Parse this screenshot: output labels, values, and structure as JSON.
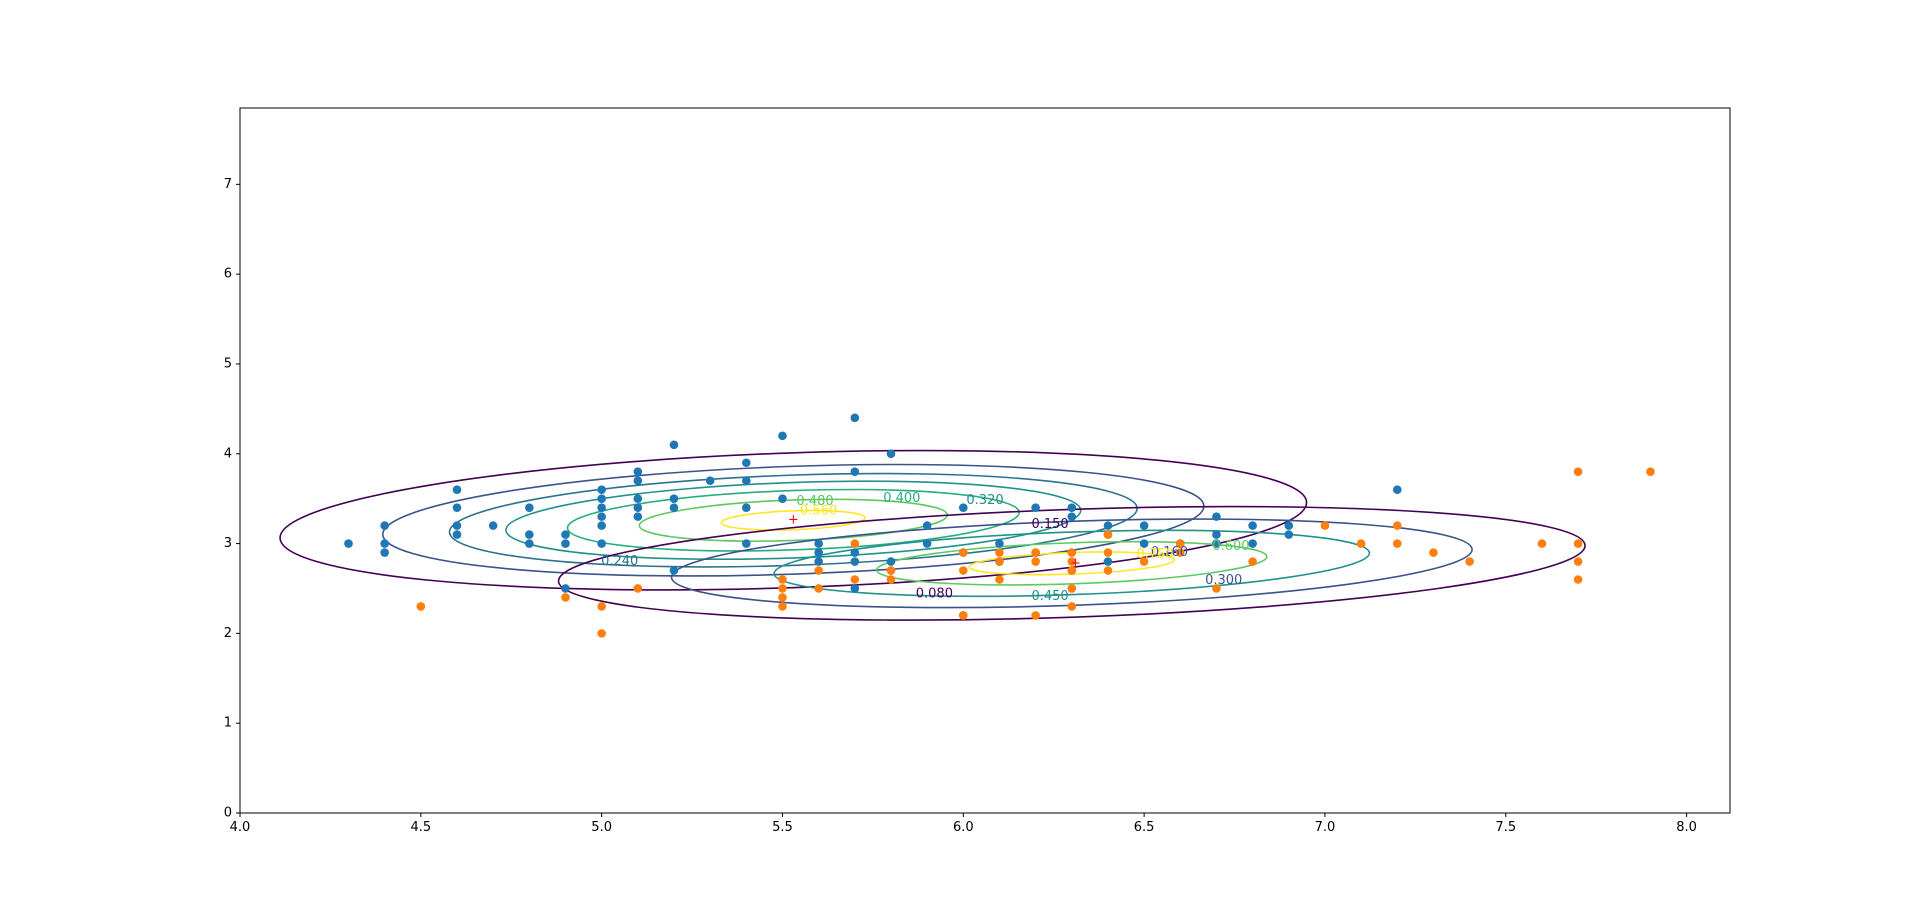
{
  "chart_data": {
    "type": "scatter",
    "title": "",
    "xlabel": "",
    "ylabel": "",
    "xlim": [
      4.0,
      8.12
    ],
    "ylim": [
      0,
      7.85
    ],
    "grid": false,
    "legend": "none",
    "x_ticks": [
      "4.0",
      "4.5",
      "5.0",
      "5.5",
      "6.0",
      "6.5",
      "7.0",
      "7.5",
      "8.0"
    ],
    "y_ticks": [
      "0",
      "1",
      "2",
      "3",
      "4",
      "5",
      "6",
      "7"
    ],
    "series": [
      {
        "color": "#1f77b4",
        "points": [
          [
            4.3,
            3.0
          ],
          [
            4.4,
            3.2
          ],
          [
            4.4,
            3.0
          ],
          [
            4.4,
            2.9
          ],
          [
            4.6,
            3.6
          ],
          [
            4.6,
            3.4
          ],
          [
            4.6,
            3.2
          ],
          [
            4.6,
            3.1
          ],
          [
            4.7,
            3.2
          ],
          [
            4.8,
            3.4
          ],
          [
            4.8,
            3.1
          ],
          [
            4.8,
            3.0
          ],
          [
            4.9,
            3.1
          ],
          [
            4.9,
            3.0
          ],
          [
            4.9,
            2.5
          ],
          [
            5.0,
            3.6
          ],
          [
            5.0,
            3.5
          ],
          [
            5.0,
            3.4
          ],
          [
            5.0,
            3.3
          ],
          [
            5.0,
            3.2
          ],
          [
            5.0,
            3.0
          ],
          [
            5.1,
            3.8
          ],
          [
            5.1,
            3.7
          ],
          [
            5.1,
            3.5
          ],
          [
            5.1,
            3.4
          ],
          [
            5.1,
            3.3
          ],
          [
            5.2,
            4.1
          ],
          [
            5.2,
            3.5
          ],
          [
            5.2,
            3.4
          ],
          [
            5.2,
            2.7
          ],
          [
            5.3,
            3.7
          ],
          [
            5.4,
            3.9
          ],
          [
            5.4,
            3.7
          ],
          [
            5.4,
            3.4
          ],
          [
            5.4,
            3.0
          ],
          [
            5.5,
            4.2
          ],
          [
            5.5,
            3.5
          ],
          [
            5.6,
            3.0
          ],
          [
            5.6,
            2.9
          ],
          [
            5.6,
            2.8
          ],
          [
            5.7,
            4.4
          ],
          [
            5.7,
            3.8
          ],
          [
            5.7,
            2.9
          ],
          [
            5.7,
            2.8
          ],
          [
            5.7,
            2.5
          ],
          [
            5.8,
            4.0
          ],
          [
            5.8,
            2.8
          ],
          [
            5.8,
            2.7
          ],
          [
            5.9,
            3.2
          ],
          [
            5.9,
            3.0
          ],
          [
            6.0,
            3.4
          ],
          [
            6.0,
            2.9
          ],
          [
            6.0,
            2.2
          ],
          [
            6.1,
            3.0
          ],
          [
            6.1,
            2.8
          ],
          [
            6.2,
            3.4
          ],
          [
            6.2,
            2.9
          ],
          [
            6.3,
            3.4
          ],
          [
            6.3,
            3.3
          ],
          [
            6.3,
            2.7
          ],
          [
            6.4,
            3.2
          ],
          [
            6.4,
            3.1
          ],
          [
            6.4,
            2.8
          ],
          [
            6.5,
            3.2
          ],
          [
            6.5,
            3.0
          ],
          [
            6.6,
            3.0
          ],
          [
            6.7,
            3.3
          ],
          [
            6.7,
            3.1
          ],
          [
            6.7,
            3.0
          ],
          [
            6.8,
            3.2
          ],
          [
            6.8,
            3.0
          ],
          [
            6.9,
            3.2
          ],
          [
            6.9,
            3.1
          ],
          [
            7.2,
            3.6
          ]
        ]
      },
      {
        "color": "#ff7f0e",
        "points": [
          [
            4.5,
            2.3
          ],
          [
            4.9,
            2.4
          ],
          [
            5.0,
            2.3
          ],
          [
            5.0,
            2.0
          ],
          [
            5.1,
            2.5
          ],
          [
            5.5,
            2.6
          ],
          [
            5.5,
            2.5
          ],
          [
            5.5,
            2.4
          ],
          [
            5.5,
            2.3
          ],
          [
            5.6,
            2.7
          ],
          [
            5.6,
            2.5
          ],
          [
            5.7,
            3.0
          ],
          [
            5.7,
            2.6
          ],
          [
            5.8,
            2.7
          ],
          [
            5.8,
            2.6
          ],
          [
            6.0,
            2.9
          ],
          [
            6.0,
            2.7
          ],
          [
            6.0,
            2.2
          ],
          [
            6.1,
            2.9
          ],
          [
            6.1,
            2.8
          ],
          [
            6.1,
            2.6
          ],
          [
            6.2,
            2.9
          ],
          [
            6.2,
            2.8
          ],
          [
            6.2,
            2.2
          ],
          [
            6.3,
            2.9
          ],
          [
            6.3,
            2.8
          ],
          [
            6.3,
            2.7
          ],
          [
            6.3,
            2.5
          ],
          [
            6.3,
            2.3
          ],
          [
            6.4,
            3.1
          ],
          [
            6.4,
            2.9
          ],
          [
            6.4,
            2.7
          ],
          [
            6.5,
            2.8
          ],
          [
            6.6,
            3.0
          ],
          [
            6.6,
            2.9
          ],
          [
            6.7,
            2.5
          ],
          [
            6.8,
            2.8
          ],
          [
            7.0,
            3.2
          ],
          [
            7.1,
            3.0
          ],
          [
            7.2,
            3.2
          ],
          [
            7.2,
            3.0
          ],
          [
            7.3,
            2.9
          ],
          [
            7.4,
            2.8
          ],
          [
            7.6,
            3.0
          ],
          [
            7.7,
            3.8
          ],
          [
            7.7,
            3.0
          ],
          [
            7.7,
            2.8
          ],
          [
            7.7,
            2.6
          ],
          [
            7.9,
            3.8
          ]
        ]
      }
    ],
    "markers": [
      {
        "symbol": "+",
        "color": "#ff0000",
        "x": 5.53,
        "y": 3.26
      },
      {
        "symbol": "+",
        "color": "#ff0000",
        "x": 6.31,
        "y": 2.78
      }
    ],
    "contour_sets": [
      {
        "name": "gaussian-1",
        "center": [
          5.53,
          3.26
        ],
        "x_radius": 1.42,
        "y_radius": 0.75,
        "levels": [
          {
            "value": "0.080",
            "color": "#440154",
            "scale": 1.0
          },
          {
            "value": "0.160",
            "color": "#3b528b",
            "scale": 0.8
          },
          {
            "value": "0.240",
            "color": "#2c728e",
            "scale": 0.67
          },
          {
            "value": "0.320",
            "color": "#21918c",
            "scale": 0.56
          },
          {
            "value": "0.400",
            "color": "#27ad81",
            "scale": 0.44
          },
          {
            "value": "0.480",
            "color": "#5ec962",
            "scale": 0.3
          },
          {
            "value": "0.560",
            "color": "#fde725",
            "scale": 0.14
          }
        ]
      },
      {
        "name": "gaussian-2",
        "center": [
          6.3,
          2.78
        ],
        "x_radius": 1.42,
        "y_radius": 0.6,
        "levels": [
          {
            "value": "0.150",
            "color": "#440154",
            "scale": 1.0
          },
          {
            "value": "0.300",
            "color": "#3b528b",
            "scale": 0.78
          },
          {
            "value": "0.450",
            "color": "#21918c",
            "scale": 0.58
          },
          {
            "value": "0.600",
            "color": "#5ec962",
            "scale": 0.38
          },
          {
            "value": "0.750",
            "color": "#fde725",
            "scale": 0.2
          }
        ]
      }
    ],
    "contour_labels": [
      {
        "text": "0.560",
        "x": 5.6,
        "y": 3.36,
        "color": "#fde725"
      },
      {
        "text": "0.480",
        "x": 5.59,
        "y": 3.47,
        "color": "#5ec962"
      },
      {
        "text": "0.400",
        "x": 5.83,
        "y": 3.5,
        "color": "#27ad81"
      },
      {
        "text": "0.320",
        "x": 6.06,
        "y": 3.48,
        "color": "#21918c"
      },
      {
        "text": "0.240",
        "x": 5.05,
        "y": 2.8,
        "color": "#2c728e"
      },
      {
        "text": "0.160",
        "x": 6.57,
        "y": 2.9,
        "color": "#3b528b"
      },
      {
        "text": "0.080",
        "x": 5.92,
        "y": 2.44,
        "color": "#440154"
      },
      {
        "text": "0.150",
        "x": 6.24,
        "y": 3.21,
        "color": "#440154"
      },
      {
        "text": "0.300",
        "x": 6.72,
        "y": 2.59,
        "color": "#3b528b"
      },
      {
        "text": "0.450",
        "x": 6.24,
        "y": 2.41,
        "color": "#21918c"
      },
      {
        "text": "0.600",
        "x": 6.74,
        "y": 2.97,
        "color": "#5ec962"
      },
      {
        "text": "0.750",
        "x": 6.53,
        "y": 2.88,
        "color": "#fde725"
      }
    ]
  }
}
